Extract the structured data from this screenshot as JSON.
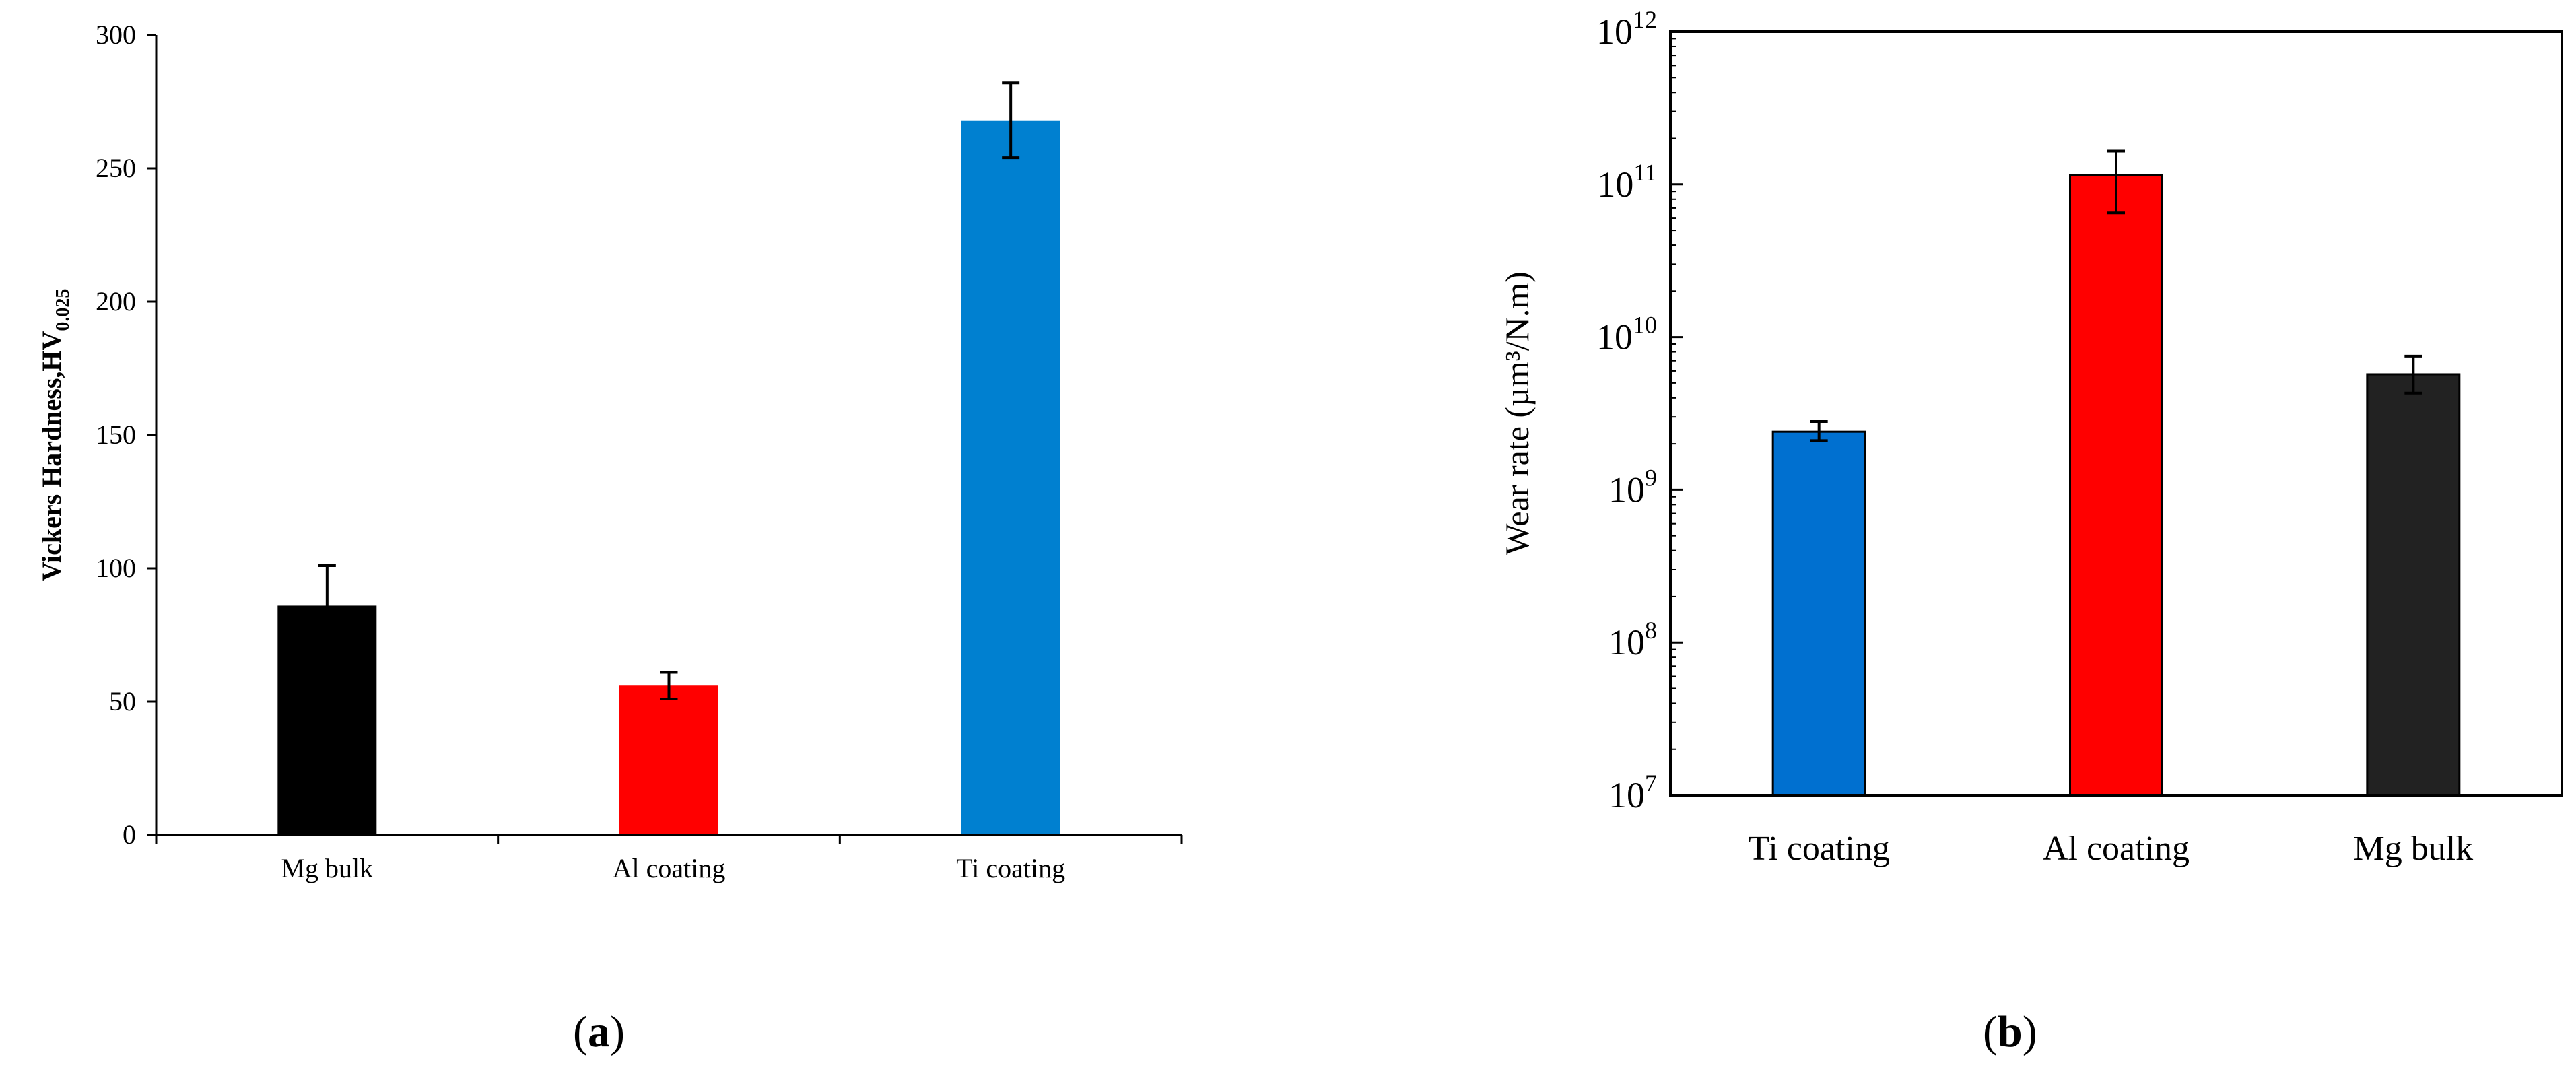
{
  "chart_data": [
    {
      "type": "bar",
      "panel_label": "a",
      "categories": [
        "Mg bulk",
        "Al coating",
        "Ti coating"
      ],
      "values": [
        86,
        56,
        268
      ],
      "error_bars": [
        15,
        5,
        14
      ],
      "colors": [
        "#000000",
        "#ff0000",
        "#0080d0"
      ],
      "ylabel": "Vickers Hardness,HV",
      "ylabel_subscript": "0.025",
      "ylim": [
        0,
        300
      ],
      "yticks": [
        "0",
        "50",
        "100",
        "150",
        "200",
        "250",
        "300"
      ],
      "y_scale": "linear",
      "grid": false
    },
    {
      "type": "bar",
      "panel_label": "b",
      "categories": [
        "Ti coating",
        "Al coating",
        "Mg bulk"
      ],
      "values": [
        2400000000,
        115000000000,
        5700000000
      ],
      "error_low": [
        2100000000,
        65000000000,
        4300000000
      ],
      "error_high": [
        2800000000,
        165000000000,
        7500000000
      ],
      "colors": [
        "#0070d0",
        "#ff0000",
        "#222222"
      ],
      "ylabel": "Wear rate (µm³/N.m)",
      "ylim": [
        10000000,
        1000000000000
      ],
      "y_scale": "log",
      "yticks": [
        {
          "base": "10",
          "exp": "7"
        },
        {
          "base": "10",
          "exp": "8"
        },
        {
          "base": "10",
          "exp": "9"
        },
        {
          "base": "10",
          "exp": "10"
        },
        {
          "base": "10",
          "exp": "11"
        },
        {
          "base": "10",
          "exp": "12"
        }
      ],
      "grid": false
    }
  ]
}
